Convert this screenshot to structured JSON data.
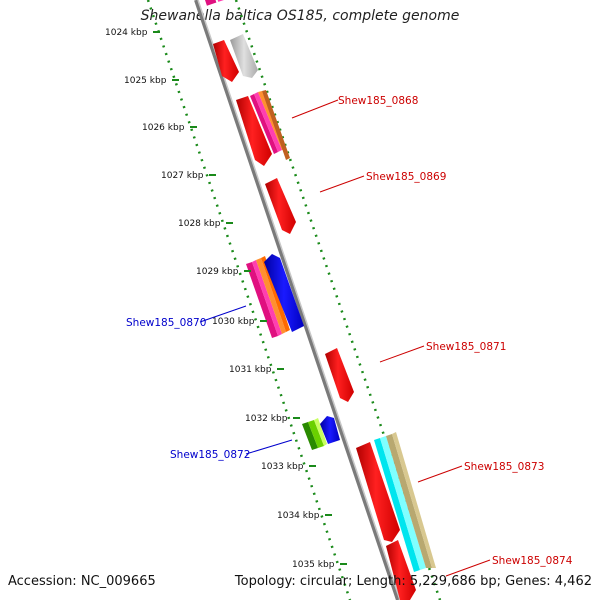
{
  "title": "Shewanella baltica OS185, complete genome",
  "footer": {
    "accession": "Accession: NC_009665",
    "summary": "Topology: circular; Length: 5,229,686 bp; Genes: 4,462"
  },
  "ticks": [
    "1024 kbp",
    "1025 kbp",
    "1026 kbp",
    "1027 kbp",
    "1028 kbp",
    "1029 kbp",
    "1030 kbp",
    "1031 kbp",
    "1032 kbp",
    "1033 kbp",
    "1034 kbp",
    "1035 kbp"
  ],
  "gene_labels": {
    "g0868": "Shew185_0868",
    "g0869": "Shew185_0869",
    "g0870": "Shew185_0870",
    "g0871": "Shew185_0871",
    "g0872": "Shew185_0872",
    "g0873": "Shew185_0873",
    "g0874": "Shew185_0874"
  },
  "colors": {
    "forward_label": "#cc0000",
    "reverse_label": "#0000cc",
    "backbone": "#8a8a8a",
    "tick_dots": "#1a8a1a",
    "gene_red": "#ff0000",
    "gene_blue": "#0000ff",
    "gene_gray": "#bbbbbb"
  }
}
